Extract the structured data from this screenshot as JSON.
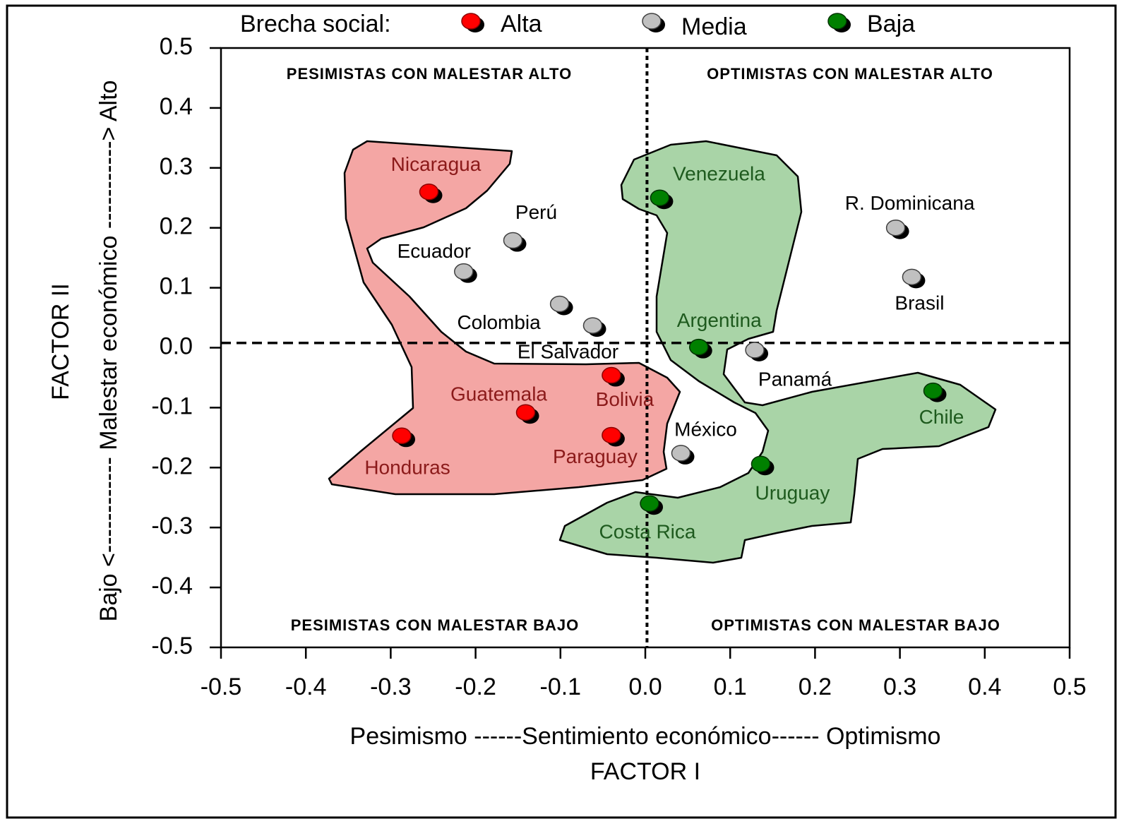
{
  "chart_data": {
    "type": "scatter",
    "legend_title": "Brecha social:",
    "x_label": "Pesimismo ------Sentimiento económico------ Optimismo",
    "x_title": "FACTOR I",
    "y_label": "Bajo <------------ Malestar económico -----------> Alto",
    "y_title": "FACTOR II",
    "quadrants": [
      "PESIMISTAS CON MALESTAR ALTO",
      "OPTIMISTAS CON MALESTAR ALTO",
      "PESIMISTAS CON MALESTAR BAJO",
      "OPTIMISTAS CON MALESTAR BAJO"
    ],
    "xlim": [
      -0.5,
      0.5
    ],
    "ylim": [
      -0.5,
      0.5
    ],
    "xticks": [
      -0.5,
      -0.4,
      -0.3,
      -0.2,
      -0.1,
      {
        "value": 0,
        "label": "0.0"
      },
      0.1,
      0.2,
      0.3,
      0.4,
      0.5
    ],
    "yticks": [
      -0.5,
      -0.4,
      -0.3,
      -0.2,
      -0.1,
      {
        "value": 0,
        "label": "0.0"
      },
      0.1,
      0.2,
      0.3,
      0.4,
      0.5
    ],
    "reference_lines": {
      "x": 0.002,
      "y": 0.008
    },
    "series": [
      {
        "name": "Alta",
        "color": "#ff0000",
        "label_color": "#8b1a1a",
        "labels": [
          "Nicaragua",
          "Guatemala",
          "Honduras",
          "Bolivia",
          "Paraguay"
        ],
        "x": [
          -0.255,
          -0.141,
          -0.287,
          -0.04,
          -0.04
        ],
        "y": [
          0.26,
          -0.108,
          -0.147,
          -0.046,
          -0.146
        ]
      },
      {
        "name": "Media",
        "color": "#c0c0c0",
        "label_color": "#000000",
        "labels": [
          "Perú",
          "Ecuador",
          "Colombia",
          "El Salvador",
          "R. Dominicana",
          "Brasil",
          "Panamá",
          "México"
        ],
        "x": [
          -0.156,
          -0.214,
          -0.101,
          -0.062,
          0.295,
          0.314,
          0.129,
          0.042
        ],
        "y": [
          0.179,
          0.127,
          0.073,
          0.037,
          0.2,
          0.118,
          -0.004,
          -0.176
        ]
      },
      {
        "name": "Baja",
        "color": "#008000",
        "label_color": "#1e5a1e",
        "labels": [
          "Venezuela",
          "Argentina",
          "Chile",
          "Uruguay",
          "Costa Rica"
        ],
        "x": [
          0.017,
          0.063,
          0.339,
          0.136,
          0.005
        ],
        "y": [
          0.25,
          0.001,
          -0.072,
          -0.194,
          -0.26
        ]
      }
    ]
  }
}
